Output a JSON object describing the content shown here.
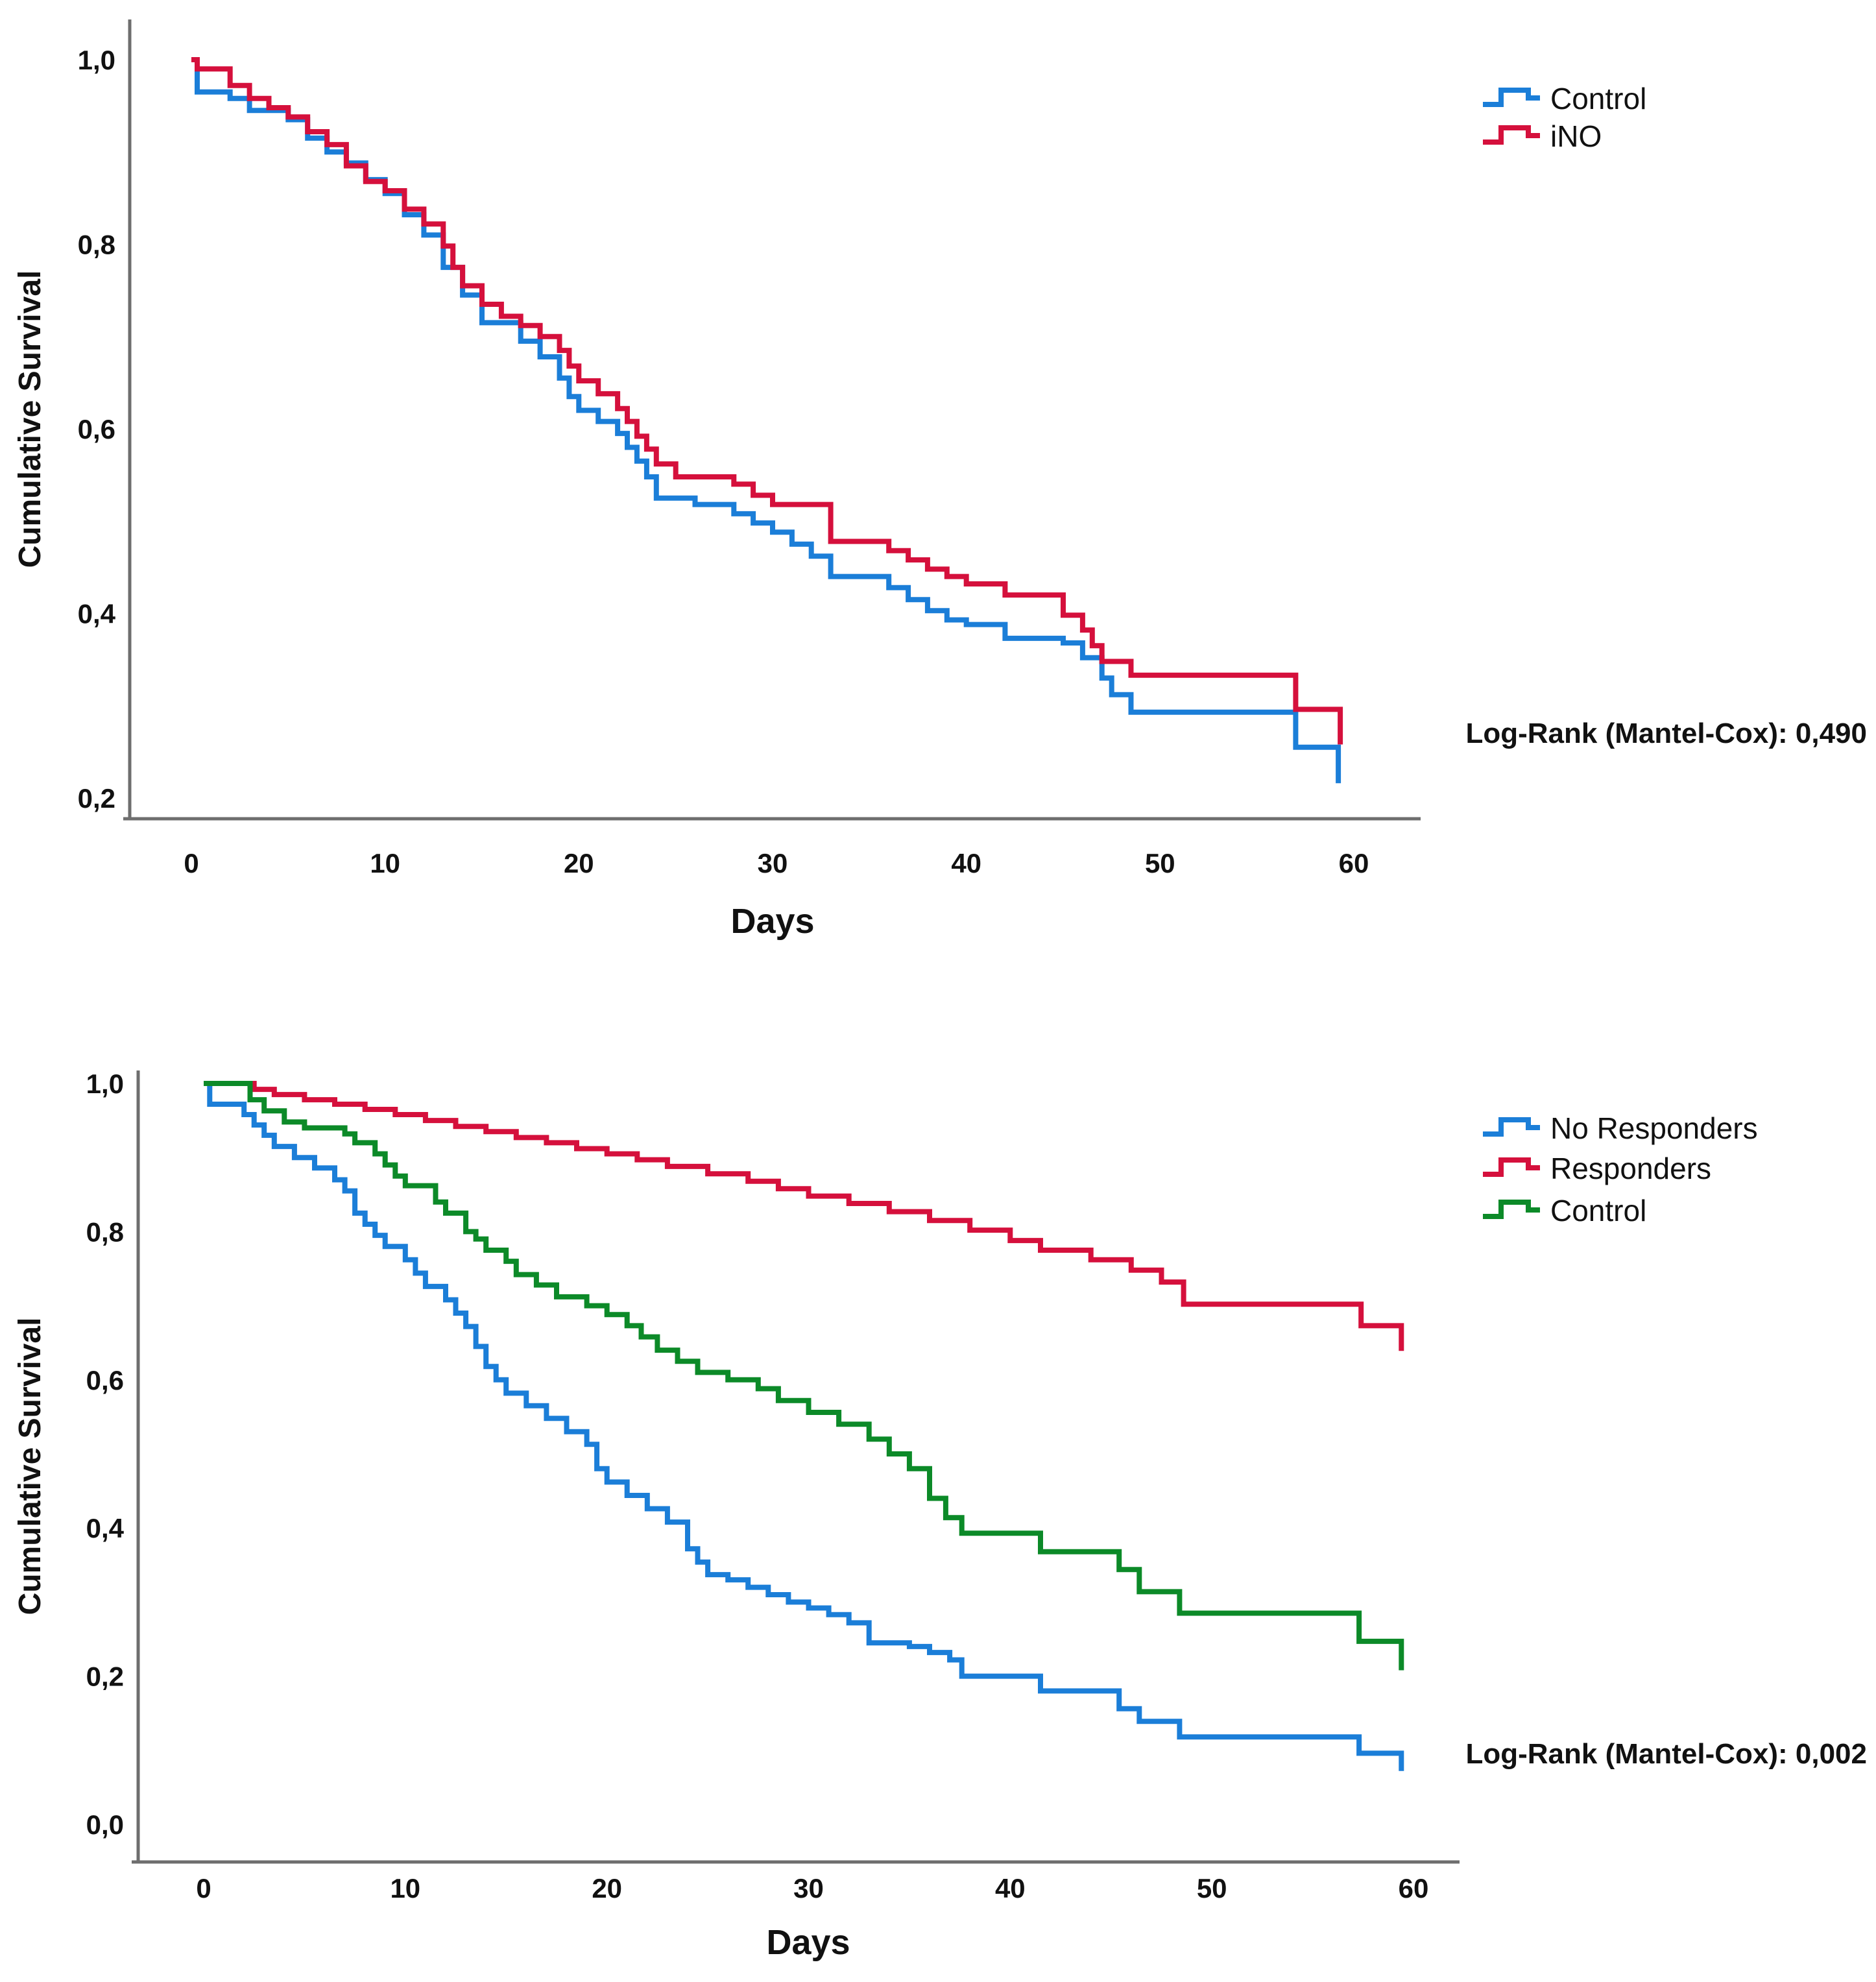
{
  "figure": {
    "background": "#ffffff",
    "axis_color": "#6E6E6E",
    "text_color": "#111111"
  },
  "chart_data": [
    {
      "id": "km-top-ino-vs-control",
      "type": "line",
      "subtype": "kaplan-meier-step",
      "title": "",
      "xlabel": "Days",
      "ylabel": "Cumulative Survival",
      "x_tick_labels": [
        "0",
        "10",
        "20",
        "30",
        "40",
        "50",
        "60"
      ],
      "x_tick_values": [
        0,
        10,
        20,
        30,
        40,
        50,
        60
      ],
      "y_tick_labels": [
        "1,0",
        "0,8",
        "0,6",
        "0,4",
        "0,2"
      ],
      "y_tick_values": [
        1.0,
        0.8,
        0.6,
        0.4,
        0.2
      ],
      "xlim": [
        -3.2,
        63.4
      ],
      "ylim": [
        0.18,
        1.04
      ],
      "grid": false,
      "legend_position": "outside-top-right",
      "annotation": "Log-Rank (Mantel-Cox): 0,490",
      "legend": [
        {
          "label": "Control",
          "color": "#1B7ED8"
        },
        {
          "label": "iNO",
          "color": "#D5103C"
        }
      ],
      "series": [
        {
          "name": "Control",
          "color": "#1B7ED8",
          "points": [
            [
              0,
              1.0
            ],
            [
              0.3,
              0.965
            ],
            [
              2,
              0.958
            ],
            [
              3,
              0.945
            ],
            [
              5,
              0.935
            ],
            [
              6,
              0.915
            ],
            [
              7,
              0.9
            ],
            [
              8,
              0.888
            ],
            [
              9,
              0.87
            ],
            [
              10,
              0.855
            ],
            [
              11,
              0.832
            ],
            [
              12,
              0.81
            ],
            [
              13,
              0.775
            ],
            [
              14,
              0.745
            ],
            [
              15,
              0.715
            ],
            [
              17,
              0.695
            ],
            [
              18,
              0.678
            ],
            [
              19,
              0.655
            ],
            [
              19.5,
              0.635
            ],
            [
              20,
              0.62
            ],
            [
              21,
              0.608
            ],
            [
              22,
              0.595
            ],
            [
              22.5,
              0.58
            ],
            [
              23,
              0.565
            ],
            [
              23.5,
              0.548
            ],
            [
              24,
              0.525
            ],
            [
              26,
              0.518
            ],
            [
              28,
              0.508
            ],
            [
              29,
              0.498
            ],
            [
              30,
              0.488
            ],
            [
              31,
              0.475
            ],
            [
              32,
              0.462
            ],
            [
              33,
              0.44
            ],
            [
              36,
              0.428
            ],
            [
              37,
              0.415
            ],
            [
              38,
              0.403
            ],
            [
              39,
              0.393
            ],
            [
              40,
              0.388
            ],
            [
              42,
              0.373
            ],
            [
              45,
              0.368
            ],
            [
              46,
              0.352
            ],
            [
              47,
              0.33
            ],
            [
              47.5,
              0.312
            ],
            [
              48.5,
              0.293
            ],
            [
              57,
              0.255
            ],
            [
              59.2,
              0.216
            ]
          ]
        },
        {
          "name": "iNO",
          "color": "#D5103C",
          "points": [
            [
              0,
              1.0
            ],
            [
              0.3,
              0.99
            ],
            [
              2,
              0.972
            ],
            [
              3,
              0.958
            ],
            [
              4,
              0.948
            ],
            [
              5,
              0.938
            ],
            [
              6,
              0.922
            ],
            [
              7,
              0.908
            ],
            [
              8,
              0.885
            ],
            [
              9,
              0.868
            ],
            [
              10,
              0.858
            ],
            [
              11,
              0.838
            ],
            [
              12,
              0.822
            ],
            [
              13,
              0.798
            ],
            [
              13.5,
              0.775
            ],
            [
              14,
              0.755
            ],
            [
              15,
              0.735
            ],
            [
              16,
              0.722
            ],
            [
              17,
              0.712
            ],
            [
              18,
              0.7
            ],
            [
              19,
              0.685
            ],
            [
              19.5,
              0.668
            ],
            [
              20,
              0.652
            ],
            [
              21,
              0.638
            ],
            [
              22,
              0.622
            ],
            [
              22.5,
              0.608
            ],
            [
              23,
              0.592
            ],
            [
              23.5,
              0.578
            ],
            [
              24,
              0.562
            ],
            [
              25,
              0.548
            ],
            [
              28,
              0.54
            ],
            [
              29,
              0.528
            ],
            [
              30,
              0.518
            ],
            [
              33,
              0.478
            ],
            [
              36,
              0.468
            ],
            [
              37,
              0.458
            ],
            [
              38,
              0.448
            ],
            [
              39,
              0.44
            ],
            [
              40,
              0.432
            ],
            [
              42,
              0.42
            ],
            [
              45,
              0.398
            ],
            [
              46,
              0.382
            ],
            [
              46.5,
              0.365
            ],
            [
              47,
              0.348
            ],
            [
              48.5,
              0.333
            ],
            [
              57,
              0.296
            ],
            [
              59.3,
              0.258
            ]
          ]
        }
      ]
    },
    {
      "id": "km-bottom-responders",
      "type": "line",
      "subtype": "kaplan-meier-step",
      "title": "",
      "xlabel": "Days",
      "ylabel": "Cumulative Survival",
      "x_tick_labels": [
        "0",
        "10",
        "20",
        "30",
        "40",
        "50",
        "60"
      ],
      "x_tick_values": [
        0,
        10,
        20,
        30,
        40,
        50,
        60
      ],
      "y_tick_labels": [
        "1,0",
        "0,8",
        "0,6",
        "0,4",
        "0,2",
        "0,0"
      ],
      "y_tick_values": [
        1.0,
        0.8,
        0.6,
        0.4,
        0.2,
        0.0
      ],
      "xlim": [
        -3.2,
        62.3
      ],
      "ylim": [
        -0.05,
        1.02
      ],
      "grid": false,
      "legend_position": "outside-top-right",
      "annotation": "Log-Rank (Mantel-Cox): 0,002",
      "legend": [
        {
          "label": "No Responders",
          "color": "#1B7ED8"
        },
        {
          "label": "Responders",
          "color": "#D5103C"
        },
        {
          "label": "Control",
          "color": "#0C8A28"
        }
      ],
      "series": [
        {
          "name": "No Responders",
          "color": "#1B7ED8",
          "points": [
            [
              0,
              1.0
            ],
            [
              0.3,
              0.972
            ],
            [
              2,
              0.958
            ],
            [
              2.5,
              0.944
            ],
            [
              3,
              0.93
            ],
            [
              3.5,
              0.915
            ],
            [
              4.5,
              0.9
            ],
            [
              5.5,
              0.886
            ],
            [
              6.5,
              0.87
            ],
            [
              7,
              0.855
            ],
            [
              7.5,
              0.825
            ],
            [
              8,
              0.81
            ],
            [
              8.5,
              0.795
            ],
            [
              9,
              0.78
            ],
            [
              10,
              0.762
            ],
            [
              10.5,
              0.744
            ],
            [
              11,
              0.726
            ],
            [
              12,
              0.708
            ],
            [
              12.5,
              0.69
            ],
            [
              13,
              0.672
            ],
            [
              13.5,
              0.645
            ],
            [
              14,
              0.618
            ],
            [
              14.5,
              0.6
            ],
            [
              15,
              0.582
            ],
            [
              16,
              0.565
            ],
            [
              17,
              0.548
            ],
            [
              18,
              0.53
            ],
            [
              19,
              0.513
            ],
            [
              19.5,
              0.48
            ],
            [
              20,
              0.462
            ],
            [
              21,
              0.444
            ],
            [
              22,
              0.426
            ],
            [
              23,
              0.408
            ],
            [
              24,
              0.372
            ],
            [
              24.5,
              0.354
            ],
            [
              25,
              0.337
            ],
            [
              26,
              0.33
            ],
            [
              27,
              0.32
            ],
            [
              28,
              0.31
            ],
            [
              29,
              0.3
            ],
            [
              30,
              0.292
            ],
            [
              31,
              0.283
            ],
            [
              32,
              0.272
            ],
            [
              33,
              0.245
            ],
            [
              35,
              0.24
            ],
            [
              36,
              0.232
            ],
            [
              37,
              0.222
            ],
            [
              37.6,
              0.2
            ],
            [
              41.5,
              0.18
            ],
            [
              45.4,
              0.156
            ],
            [
              46.4,
              0.139
            ],
            [
              48.4,
              0.118
            ],
            [
              57.3,
              0.096
            ],
            [
              59.4,
              0.072
            ]
          ]
        },
        {
          "name": "Responders",
          "color": "#D5103C",
          "points": [
            [
              0,
              1.0
            ],
            [
              2.5,
              0.992
            ],
            [
              3.5,
              0.985
            ],
            [
              5,
              0.978
            ],
            [
              6.5,
              0.972
            ],
            [
              8,
              0.965
            ],
            [
              9.5,
              0.958
            ],
            [
              11,
              0.95
            ],
            [
              12.5,
              0.942
            ],
            [
              14,
              0.935
            ],
            [
              15.5,
              0.927
            ],
            [
              17,
              0.92
            ],
            [
              18.5,
              0.912
            ],
            [
              20,
              0.905
            ],
            [
              21.5,
              0.897
            ],
            [
              23,
              0.888
            ],
            [
              25,
              0.878
            ],
            [
              27,
              0.868
            ],
            [
              28.5,
              0.858
            ],
            [
              30,
              0.848
            ],
            [
              32,
              0.838
            ],
            [
              34,
              0.827
            ],
            [
              36,
              0.815
            ],
            [
              38,
              0.802
            ],
            [
              40,
              0.788
            ],
            [
              41.5,
              0.775
            ],
            [
              44,
              0.762
            ],
            [
              46,
              0.748
            ],
            [
              47.5,
              0.732
            ],
            [
              48.6,
              0.702
            ],
            [
              57.4,
              0.673
            ],
            [
              59.4,
              0.639
            ]
          ]
        },
        {
          "name": "Control",
          "color": "#0C8A28",
          "points": [
            [
              0,
              1.0
            ],
            [
              2.3,
              0.978
            ],
            [
              3,
              0.963
            ],
            [
              4,
              0.948
            ],
            [
              5,
              0.94
            ],
            [
              7,
              0.932
            ],
            [
              7.5,
              0.92
            ],
            [
              8.5,
              0.905
            ],
            [
              9,
              0.89
            ],
            [
              9.5,
              0.875
            ],
            [
              10,
              0.862
            ],
            [
              11.5,
              0.84
            ],
            [
              12,
              0.825
            ],
            [
              13,
              0.8
            ],
            [
              13.5,
              0.79
            ],
            [
              14,
              0.775
            ],
            [
              15,
              0.76
            ],
            [
              15.5,
              0.742
            ],
            [
              16.5,
              0.728
            ],
            [
              17.5,
              0.712
            ],
            [
              19,
              0.7
            ],
            [
              20,
              0.688
            ],
            [
              21,
              0.673
            ],
            [
              21.7,
              0.658
            ],
            [
              22.5,
              0.64
            ],
            [
              23.5,
              0.625
            ],
            [
              24.5,
              0.61
            ],
            [
              26,
              0.6
            ],
            [
              27.5,
              0.588
            ],
            [
              28.5,
              0.572
            ],
            [
              30,
              0.556
            ],
            [
              31.5,
              0.54
            ],
            [
              33,
              0.52
            ],
            [
              34,
              0.5
            ],
            [
              35,
              0.48
            ],
            [
              36,
              0.44
            ],
            [
              36.8,
              0.414
            ],
            [
              37.6,
              0.393
            ],
            [
              41.5,
              0.368
            ],
            [
              45.4,
              0.344
            ],
            [
              46.4,
              0.314
            ],
            [
              48.4,
              0.285
            ],
            [
              57.3,
              0.247
            ],
            [
              59.4,
              0.208
            ]
          ]
        }
      ]
    }
  ]
}
